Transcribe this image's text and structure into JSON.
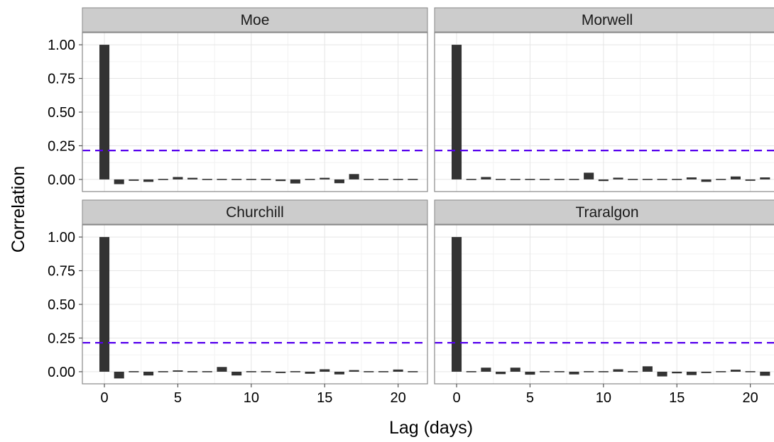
{
  "colors": {
    "bar": "#333333",
    "ci_line": "#5500ee",
    "strip_bg": "#cccccc",
    "grid_major": "#e5e5e5",
    "grid_minor": "#f2f2f2",
    "panel_border": "#888888"
  },
  "chart_data": {
    "type": "bar",
    "subtype": "faceted-acf",
    "xlabel": "Lag (days)",
    "ylabel": "Correlation",
    "xlim": [
      -1.5,
      22
    ],
    "ylim": [
      -0.09,
      1.09
    ],
    "x_ticks": [
      0,
      5,
      10,
      15,
      20
    ],
    "y_ticks": [
      0,
      0.25,
      0.5,
      0.75,
      1.0
    ],
    "y_tick_labels": [
      "0.00",
      "0.25",
      "0.50",
      "0.75",
      "1.00"
    ],
    "grid": true,
    "confidence_bound": 0.215,
    "lags": [
      0,
      1,
      2,
      3,
      4,
      5,
      6,
      7,
      8,
      9,
      10,
      11,
      12,
      13,
      14,
      15,
      16,
      17,
      18,
      19,
      20,
      21
    ],
    "panels": [
      {
        "name": "Moe",
        "values": [
          1.0,
          -0.035,
          -0.01,
          -0.018,
          -0.004,
          0.018,
          0.012,
          -0.005,
          -0.004,
          -0.003,
          0.002,
          -0.007,
          -0.012,
          -0.03,
          0.002,
          0.012,
          -0.028,
          0.04,
          0.002,
          -0.008,
          -0.002,
          -0.002
        ]
      },
      {
        "name": "Morwell",
        "values": [
          1.0,
          -0.003,
          0.018,
          -0.003,
          -0.003,
          -0.003,
          -0.008,
          0.007,
          0.003,
          0.05,
          -0.012,
          0.013,
          -0.003,
          -0.003,
          0.003,
          0.005,
          0.015,
          -0.018,
          0.002,
          0.022,
          -0.01,
          0.015
        ]
      },
      {
        "name": "Churchill",
        "values": [
          1.0,
          -0.05,
          0.002,
          -0.028,
          -0.004,
          0.01,
          0.006,
          -0.003,
          0.035,
          -0.028,
          -0.002,
          -0.005,
          -0.01,
          0.003,
          -0.015,
          0.018,
          -0.02,
          0.012,
          -0.008,
          -0.005,
          0.016,
          0.002
        ]
      },
      {
        "name": "Traralgon",
        "values": [
          1.0,
          -0.003,
          0.03,
          -0.018,
          0.03,
          -0.022,
          -0.002,
          -0.004,
          -0.02,
          -0.004,
          -0.007,
          0.018,
          0.004,
          0.04,
          -0.035,
          -0.012,
          -0.025,
          -0.01,
          -0.008,
          0.015,
          0.002,
          -0.03
        ]
      }
    ]
  }
}
